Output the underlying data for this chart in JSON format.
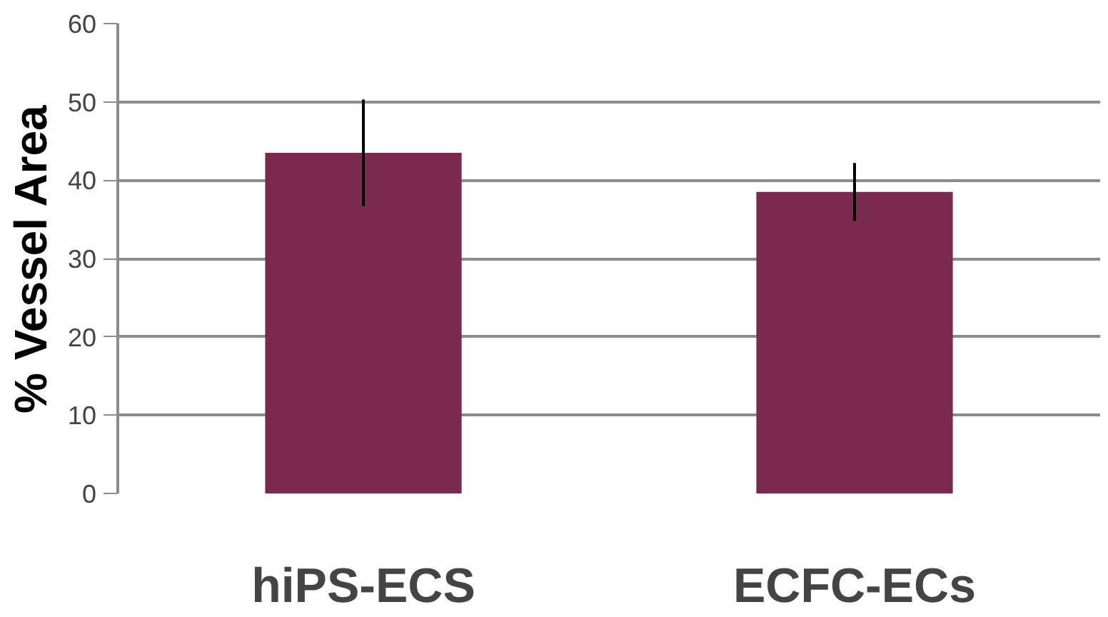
{
  "chart_data": {
    "type": "bar",
    "ylabel": "% Vessel Area",
    "categories": [
      "hiPS-ECS",
      "ECFC-ECs"
    ],
    "values": [
      43.5,
      38.5
    ],
    "errors": [
      6.8,
      3.7
    ],
    "color": "#7b2a4f",
    "ylim": [
      0,
      60
    ],
    "yticks": [
      0,
      10,
      20,
      30,
      40,
      50,
      60
    ],
    "grid": "y"
  }
}
